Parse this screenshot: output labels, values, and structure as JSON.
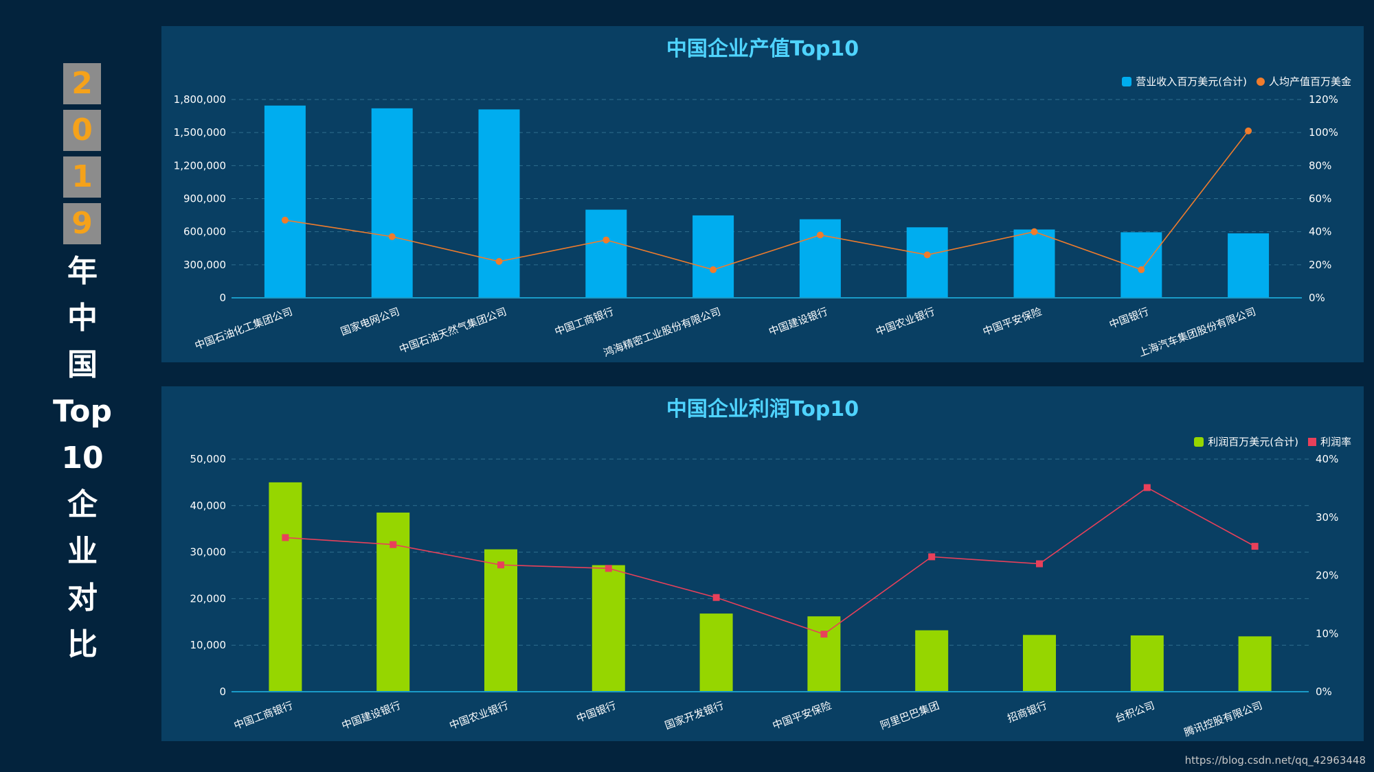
{
  "sidebar": {
    "digits": [
      "2",
      "0",
      "1",
      "9"
    ],
    "chars": [
      "年",
      "中",
      "国",
      "Top",
      "10",
      "企",
      "业",
      "对",
      "比"
    ]
  },
  "colors": {
    "background": "#03233d",
    "panel": "#093f63",
    "title": "#4fd4ff",
    "revenue_bar": "#00adef",
    "per_capita_line": "#f07c2c",
    "profit_bar": "#96d600",
    "profit_rate_line": "#e8405a"
  },
  "watermark": "https://blog.csdn.net/qq_42963448",
  "chart_data": [
    {
      "type": "bar",
      "title": "中国企业产值Top10",
      "categories": [
        "中国石油化工集团公司",
        "国家电网公司",
        "中国石油天然气集团公司",
        "中国工商银行",
        "鸿海精密工业股份有限公司",
        "中国建设银行",
        "中国农业银行",
        "中国平安保险",
        "中国银行",
        "上海汽车集团股份有限公司"
      ],
      "series": [
        {
          "name": "营业收入百万美元(合计)",
          "type": "bar",
          "axis": "left",
          "values": [
            1745000,
            1720000,
            1710000,
            800000,
            748000,
            713000,
            640000,
            620000,
            595000,
            585000
          ]
        },
        {
          "name": "人均产值百万美金",
          "type": "line",
          "axis": "right",
          "values": [
            47,
            37,
            22,
            35,
            17,
            38,
            26,
            40,
            17,
            101
          ]
        }
      ],
      "ylim_left": [
        0,
        1800000
      ],
      "yticks_left": [
        "0",
        "300,000",
        "600,000",
        "900,000",
        "1,200,000",
        "1,500,000",
        "1,800,000"
      ],
      "ylim_right": [
        0,
        120
      ],
      "yticks_right": [
        "0%",
        "20%",
        "40%",
        "60%",
        "80%",
        "100%",
        "120%"
      ],
      "legend_position": "top-right",
      "grid": "dashed horizontal"
    },
    {
      "type": "bar",
      "title": "中国企业利润Top10",
      "categories": [
        "中国工商银行",
        "中国建设银行",
        "中国农业银行",
        "中国银行",
        "国家开发银行",
        "中国平安保险",
        "阿里巴巴集团",
        "招商银行",
        "台积公司",
        "腾讯控股有限公司"
      ],
      "series": [
        {
          "name": "利润百万美元(合计)",
          "type": "bar",
          "axis": "left",
          "values": [
            45000,
            38500,
            30600,
            27200,
            16800,
            16200,
            13200,
            12200,
            12100,
            11900
          ]
        },
        {
          "name": "利润率",
          "type": "line",
          "axis": "right",
          "values": [
            26.5,
            25.3,
            21.8,
            21.2,
            16.2,
            9.9,
            23.2,
            22,
            35.1,
            25
          ]
        }
      ],
      "ylim_left": [
        0,
        50000
      ],
      "yticks_left": [
        "0",
        "10,000",
        "20,000",
        "30,000",
        "40,000",
        "50,000"
      ],
      "ylim_right": [
        0,
        40
      ],
      "yticks_right": [
        "0%",
        "10%",
        "20%",
        "30%",
        "40%"
      ],
      "legend_position": "top-right",
      "grid": "dashed horizontal"
    }
  ]
}
